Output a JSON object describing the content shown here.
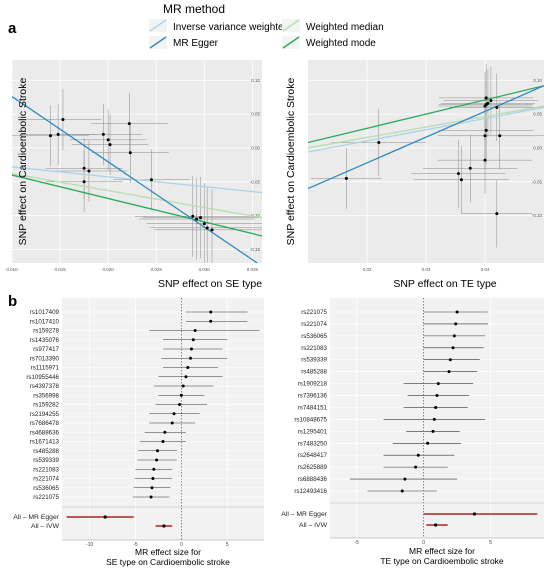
{
  "panel_labels": {
    "a": "a",
    "b": "b"
  },
  "legend": {
    "title": "MR method",
    "entries": [
      {
        "label": "Inverse variance weighted",
        "color": "#a9d4e6"
      },
      {
        "label": "MR Egger",
        "color": "#2e8bc0"
      },
      {
        "label": "Weighted median",
        "color": "#b9ddb0"
      },
      {
        "label": "Weighted mode",
        "color": "#2aa95e"
      }
    ]
  },
  "chart_data": [
    {
      "type": "scatter",
      "id": "scatter-se",
      "xlabel": "SNP effect on SE type",
      "ylabel": "SNP effect on Cardioembolic Stroke",
      "xlim": [
        0.01,
        0.036
      ],
      "ylim": [
        -0.17,
        0.13
      ],
      "xticks": [
        "0.010",
        "0.015",
        "0.020",
        "0.025",
        "0.030",
        "0.035"
      ],
      "xtick_values": [
        0.01,
        0.015,
        0.02,
        0.025,
        0.03,
        0.035
      ],
      "yticks": [
        "-0.15",
        "-0.10",
        "-0.05",
        "0.00",
        "0.05",
        "0.10"
      ],
      "ytick_values": [
        -0.15,
        -0.1,
        -0.05,
        0.0,
        0.05,
        0.1
      ],
      "points": [
        {
          "x": 0.0153,
          "y": 0.042,
          "xerr": 0.004,
          "yerr": 0.045
        },
        {
          "x": 0.0148,
          "y": 0.02,
          "xerr": 0.004,
          "yerr": 0.045
        },
        {
          "x": 0.014,
          "y": 0.018,
          "xerr": 0.004,
          "yerr": 0.045
        },
        {
          "x": 0.0195,
          "y": 0.02,
          "xerr": 0.004,
          "yerr": 0.045
        },
        {
          "x": 0.02,
          "y": 0.012,
          "xerr": 0.004,
          "yerr": 0.045
        },
        {
          "x": 0.0222,
          "y": 0.036,
          "xerr": 0.004,
          "yerr": 0.045
        },
        {
          "x": 0.0202,
          "y": 0.005,
          "xerr": 0.004,
          "yerr": 0.045
        },
        {
          "x": 0.0223,
          "y": -0.007,
          "xerr": 0.004,
          "yerr": 0.045
        },
        {
          "x": 0.0175,
          "y": -0.03,
          "xerr": 0.004,
          "yerr": 0.045
        },
        {
          "x": 0.018,
          "y": -0.034,
          "xerr": 0.004,
          "yerr": 0.045
        },
        {
          "x": 0.0175,
          "y": -0.05,
          "xerr": 0.004,
          "yerr": 0.045
        },
        {
          "x": 0.0245,
          "y": -0.047,
          "xerr": 0.004,
          "yerr": 0.045
        },
        {
          "x": 0.0288,
          "y": -0.101,
          "xerr": 0.006,
          "yerr": 0.06
        },
        {
          "x": 0.0292,
          "y": -0.105,
          "xerr": 0.006,
          "yerr": 0.06
        },
        {
          "x": 0.0296,
          "y": -0.103,
          "xerr": 0.006,
          "yerr": 0.06
        },
        {
          "x": 0.03,
          "y": -0.112,
          "xerr": 0.006,
          "yerr": 0.06
        },
        {
          "x": 0.0303,
          "y": -0.118,
          "xerr": 0.006,
          "yerr": 0.06
        },
        {
          "x": 0.0308,
          "y": -0.121,
          "xerr": 0.006,
          "yerr": 0.06
        }
      ],
      "lines": [
        {
          "method": "Inverse variance weighted",
          "x0": 0.01,
          "y0": -0.028,
          "x1": 0.036,
          "y1": -0.066
        },
        {
          "method": "Weighted median",
          "x0": 0.01,
          "y0": -0.038,
          "x1": 0.036,
          "y1": -0.103
        },
        {
          "method": "Weighted mode",
          "x0": 0.01,
          "y0": -0.04,
          "x1": 0.036,
          "y1": -0.13
        },
        {
          "method": "MR Egger",
          "x0": 0.01,
          "y0": 0.076,
          "x1": 0.0355,
          "y1": -0.17
        }
      ]
    },
    {
      "type": "scatter",
      "id": "scatter-te",
      "xlabel": "SNP effect on TE type",
      "ylabel": "SNP effect on Cardioembolic Stroke",
      "xlim": [
        0.01,
        0.05
      ],
      "ylim": [
        -0.17,
        0.13
      ],
      "xticks": [
        "0.02",
        "0.03",
        "0.04"
      ],
      "xtick_values": [
        0.02,
        0.03,
        0.04
      ],
      "yticks": [
        "-0.10",
        "-0.05",
        "0.00",
        "0.05",
        "0.10"
      ],
      "ytick_values": [
        -0.1,
        -0.05,
        0.0,
        0.05,
        0.1
      ],
      "points": [
        {
          "x": 0.0165,
          "y": -0.045,
          "xerr": 0.006,
          "yerr": 0.045
        },
        {
          "x": 0.022,
          "y": 0.008,
          "xerr": 0.008,
          "yerr": 0.05
        },
        {
          "x": 0.0355,
          "y": -0.038,
          "xerr": 0.008,
          "yerr": 0.05
        },
        {
          "x": 0.036,
          "y": -0.047,
          "xerr": 0.008,
          "yerr": 0.05
        },
        {
          "x": 0.0375,
          "y": -0.03,
          "xerr": 0.008,
          "yerr": 0.05
        },
        {
          "x": 0.04,
          "y": -0.018,
          "xerr": 0.008,
          "yerr": 0.05
        },
        {
          "x": 0.04,
          "y": 0.018,
          "xerr": 0.008,
          "yerr": 0.05
        },
        {
          "x": 0.0402,
          "y": 0.026,
          "xerr": 0.008,
          "yerr": 0.05
        },
        {
          "x": 0.04,
          "y": 0.062,
          "xerr": 0.008,
          "yerr": 0.05
        },
        {
          "x": 0.0402,
          "y": 0.064,
          "xerr": 0.008,
          "yerr": 0.05
        },
        {
          "x": 0.0405,
          "y": 0.066,
          "xerr": 0.008,
          "yerr": 0.05
        },
        {
          "x": 0.0402,
          "y": 0.074,
          "xerr": 0.008,
          "yerr": 0.05
        },
        {
          "x": 0.041,
          "y": 0.07,
          "xerr": 0.008,
          "yerr": 0.05
        },
        {
          "x": 0.042,
          "y": 0.06,
          "xerr": 0.008,
          "yerr": 0.05
        },
        {
          "x": 0.0425,
          "y": 0.018,
          "xerr": 0.008,
          "yerr": 0.05
        },
        {
          "x": 0.042,
          "y": -0.097,
          "xerr": 0.006,
          "yerr": 0.05
        }
      ],
      "lines": [
        {
          "method": "Inverse variance weighted",
          "x0": 0.01,
          "y0": -0.006,
          "x1": 0.05,
          "y1": 0.06
        },
        {
          "method": "Weighted median",
          "x0": 0.01,
          "y0": 0.0,
          "x1": 0.05,
          "y1": 0.062
        },
        {
          "method": "Weighted mode",
          "x0": 0.01,
          "y0": 0.008,
          "x1": 0.05,
          "y1": 0.092
        },
        {
          "method": "MR Egger",
          "x0": 0.01,
          "y0": -0.06,
          "x1": 0.05,
          "y1": 0.092
        }
      ]
    },
    {
      "type": "forest",
      "id": "forest-se",
      "xlabel": "MR effect size for\nSE type on Cardioembolic stroke",
      "xlim": [
        -13,
        9
      ],
      "xticks": [
        "-10",
        "-5",
        "0",
        "5"
      ],
      "xtick_values": [
        -10,
        -5,
        0,
        5
      ],
      "rows": [
        {
          "label": "rs1017409",
          "est": 3.2,
          "lo": 0.5,
          "hi": 7.2
        },
        {
          "label": "rs1017410",
          "est": 3.2,
          "lo": 0.5,
          "hi": 7.2
        },
        {
          "label": "rs159278",
          "est": 1.5,
          "lo": -3.5,
          "hi": 8.5
        },
        {
          "label": "rs1435076",
          "est": 1.3,
          "lo": -2.0,
          "hi": 5.0
        },
        {
          "label": "rs977417",
          "est": 1.1,
          "lo": -2.0,
          "hi": 4.5
        },
        {
          "label": "rs7013390",
          "est": 1.0,
          "lo": -2.2,
          "hi": 5.0
        },
        {
          "label": "rs1115971",
          "est": 0.7,
          "lo": -2.0,
          "hi": 4.0
        },
        {
          "label": "rs10955446",
          "est": 0.5,
          "lo": -2.5,
          "hi": 4.5
        },
        {
          "label": "rs4397378",
          "est": 0.2,
          "lo": -3.0,
          "hi": 3.5
        },
        {
          "label": "rs356998",
          "est": 0.0,
          "lo": -2.5,
          "hi": 2.5
        },
        {
          "label": "rs159282",
          "est": -0.2,
          "lo": -2.8,
          "hi": 2.8
        },
        {
          "label": "rs2194255",
          "est": -0.8,
          "lo": -3.5,
          "hi": 2.0
        },
        {
          "label": "rs7686478",
          "est": -1.0,
          "lo": -3.5,
          "hi": 1.5
        },
        {
          "label": "rs4688636",
          "est": -1.8,
          "lo": -4.0,
          "hi": 0.5
        },
        {
          "label": "rs1671413",
          "est": -2.0,
          "lo": -4.5,
          "hi": 0.5
        },
        {
          "label": "rs485288",
          "est": -2.6,
          "lo": -4.7,
          "hi": -0.5
        },
        {
          "label": "rs539339",
          "est": -2.7,
          "lo": -4.8,
          "hi": -0.5
        },
        {
          "label": "rs221083",
          "est": -3.0,
          "lo": -5.0,
          "hi": -1.0
        },
        {
          "label": "rs221074",
          "est": -3.1,
          "lo": -5.1,
          "hi": -1.0
        },
        {
          "label": "rs536065",
          "est": -3.2,
          "lo": -5.2,
          "hi": -1.2
        },
        {
          "label": "rs221075",
          "est": -3.3,
          "lo": -5.3,
          "hi": -1.3
        }
      ],
      "summary": [
        {
          "label": "All – MR Egger",
          "est": -8.3,
          "lo": -12.5,
          "hi": -5.2
        },
        {
          "label": "All – IVW",
          "est": -1.9,
          "lo": -2.8,
          "hi": -1.0
        }
      ]
    },
    {
      "type": "forest",
      "id": "forest-te",
      "xlabel": "MR effect size for\nTE type on Cardioembolic stroke",
      "xlim": [
        -7,
        9
      ],
      "xticks": [
        "-5",
        "0",
        "5"
      ],
      "xtick_values": [
        -5,
        0,
        5
      ],
      "rows": [
        {
          "label": "rs221075",
          "est": 2.5,
          "lo": 0.0,
          "hi": 4.8
        },
        {
          "label": "rs221074",
          "est": 2.4,
          "lo": 0.0,
          "hi": 4.8
        },
        {
          "label": "rs536065",
          "est": 2.3,
          "lo": 0.0,
          "hi": 4.6
        },
        {
          "label": "rs221083",
          "est": 2.2,
          "lo": 0.0,
          "hi": 4.5
        },
        {
          "label": "rs539339",
          "est": 2.0,
          "lo": 0.0,
          "hi": 4.2
        },
        {
          "label": "rs485288",
          "est": 1.9,
          "lo": 0.0,
          "hi": 4.0
        },
        {
          "label": "rs1909218",
          "est": 1.1,
          "lo": -1.5,
          "hi": 3.7
        },
        {
          "label": "rs7396136",
          "est": 1.0,
          "lo": -1.2,
          "hi": 3.4
        },
        {
          "label": "rs7484151",
          "est": 0.9,
          "lo": -1.5,
          "hi": 3.3
        },
        {
          "label": "rs10848675",
          "est": 0.8,
          "lo": -3.0,
          "hi": 4.6
        },
        {
          "label": "rs1295401",
          "est": 0.7,
          "lo": -1.3,
          "hi": 2.7
        },
        {
          "label": "rs7483250",
          "est": 0.3,
          "lo": -2.3,
          "hi": 2.8
        },
        {
          "label": "rs2648417",
          "est": -0.4,
          "lo": -3.0,
          "hi": 2.3
        },
        {
          "label": "rs2625889",
          "est": -0.6,
          "lo": -3.0,
          "hi": 1.8
        },
        {
          "label": "rs6888436",
          "est": -1.4,
          "lo": -5.5,
          "hi": 2.5
        },
        {
          "label": "rs12493416",
          "est": -1.6,
          "lo": -4.2,
          "hi": 1.0
        }
      ],
      "summary": [
        {
          "label": "All – MR Egger",
          "est": 3.8,
          "lo": 0.0,
          "hi": 8.5
        },
        {
          "label": "All – IVW",
          "est": 0.9,
          "lo": 0.2,
          "hi": 1.8
        }
      ]
    }
  ]
}
